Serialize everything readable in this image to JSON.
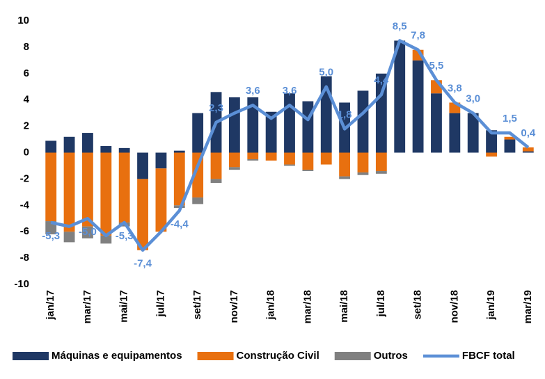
{
  "chart_data": {
    "type": "bar",
    "stacked": true,
    "grid": false,
    "categories": [
      "jan/17",
      null,
      "mar/17",
      null,
      "mai/17",
      null,
      "jul/17",
      null,
      "set/17",
      null,
      "nov/17",
      null,
      "jan/18",
      null,
      "mar/18",
      null,
      "mai/18",
      null,
      "jul/18",
      null,
      "set/18",
      null,
      "nov/18",
      null,
      "jan/19",
      null,
      "mar/19"
    ],
    "ylim": [
      -10,
      10
    ],
    "yticks": [
      -10,
      -8,
      -6,
      -4,
      -2,
      0,
      2,
      4,
      6,
      8,
      10
    ],
    "legend": "bottom",
    "series": [
      {
        "name": "Máquinas e equipamentos",
        "type": "bar",
        "color": "#1f3864",
        "values": [
          0.9,
          1.2,
          1.5,
          0.5,
          0.35,
          -2.0,
          -1.2,
          0.15,
          3.0,
          4.6,
          4.2,
          4.2,
          3.1,
          4.5,
          3.9,
          5.8,
          3.8,
          4.7,
          6.0,
          8.5,
          7.0,
          4.5,
          3.0,
          3.0,
          1.7,
          1.0,
          0.1
        ]
      },
      {
        "name": "Construção Civil",
        "type": "bar",
        "color": "#e8700f",
        "values": [
          -5.2,
          -6.0,
          -5.6,
          -6.3,
          -5.3,
          -5.4,
          -4.8,
          -4.0,
          -3.4,
          -2.0,
          -1.1,
          -0.5,
          -0.6,
          -0.9,
          -1.3,
          -0.9,
          -1.8,
          -1.5,
          -1.4,
          0,
          0.8,
          1.0,
          0.8,
          0,
          -0.3,
          0.2,
          0.3
        ]
      },
      {
        "name": "Outros",
        "type": "bar",
        "color": "#808080",
        "values": [
          -1.0,
          -0.8,
          -0.9,
          -0.6,
          -0.3,
          0,
          0,
          -0.2,
          -0.5,
          -0.3,
          -0.2,
          -0.1,
          0,
          -0.1,
          -0.1,
          0,
          -0.2,
          -0.2,
          -0.2,
          0,
          0,
          0,
          0,
          0,
          0,
          0,
          0
        ]
      },
      {
        "name": "FBCF total",
        "type": "line",
        "color": "#5b8fd6",
        "values": [
          -5.3,
          -5.6,
          -5.0,
          -6.3,
          -5.3,
          -7.4,
          -6.0,
          -4.4,
          -1.0,
          2.3,
          3.0,
          3.6,
          2.6,
          3.6,
          2.5,
          5.0,
          1.8,
          3.0,
          4.4,
          8.5,
          7.8,
          5.5,
          3.8,
          3.0,
          1.5,
          1.5,
          0.4
        ],
        "value_labels": [
          "-5,3",
          null,
          "-5,0",
          null,
          "-5,3",
          "-7,4",
          null,
          "-4,4",
          null,
          "2,3",
          null,
          "3,6",
          null,
          "3,6",
          null,
          "5,0",
          "1,8",
          null,
          "4,4",
          "8,5",
          "7,8",
          "5,5",
          "3,8",
          "3,0",
          null,
          "1,5",
          "0,4"
        ]
      }
    ]
  }
}
